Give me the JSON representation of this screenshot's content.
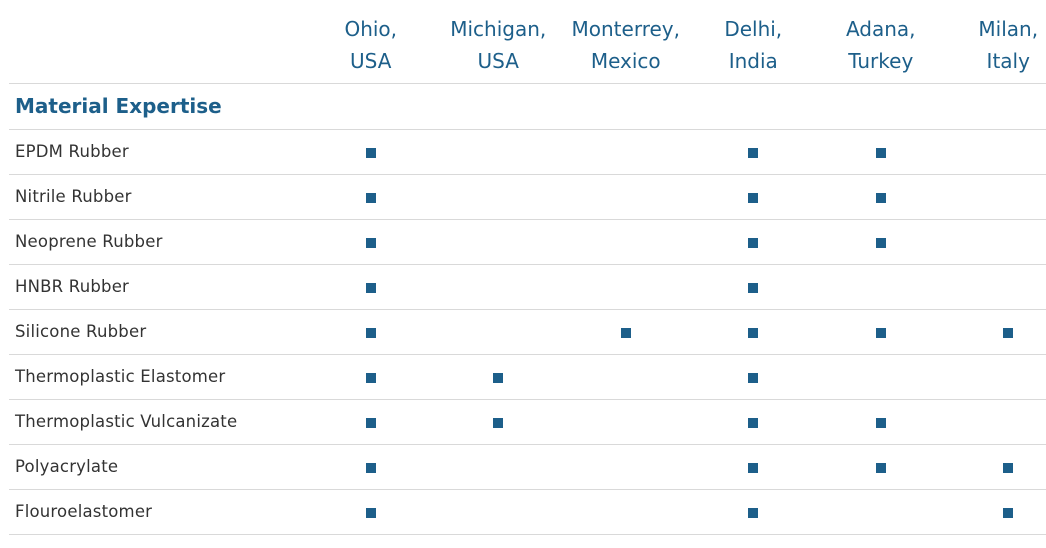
{
  "table": {
    "locations": [
      {
        "line1": "Ohio,",
        "line2": "USA"
      },
      {
        "line1": "Michigan,",
        "line2": "USA"
      },
      {
        "line1": "Monterrey,",
        "line2": "Mexico"
      },
      {
        "line1": "Delhi,",
        "line2": "India"
      },
      {
        "line1": "Adana,",
        "line2": "Turkey"
      },
      {
        "line1": "Milan,",
        "line2": "Italy"
      }
    ],
    "section_title": "Material Expertise",
    "rows": [
      {
        "name": "EPDM Rubber",
        "marks": [
          true,
          false,
          false,
          true,
          true,
          false
        ]
      },
      {
        "name": "Nitrile Rubber",
        "marks": [
          true,
          false,
          false,
          true,
          true,
          false
        ]
      },
      {
        "name": "Neoprene Rubber",
        "marks": [
          true,
          false,
          false,
          true,
          true,
          false
        ]
      },
      {
        "name": "HNBR Rubber",
        "marks": [
          true,
          false,
          false,
          true,
          false,
          false
        ]
      },
      {
        "name": "Silicone Rubber",
        "marks": [
          true,
          false,
          true,
          true,
          true,
          true
        ]
      },
      {
        "name": "Thermoplastic Elastomer",
        "marks": [
          true,
          true,
          false,
          true,
          false,
          false
        ]
      },
      {
        "name": "Thermoplastic Vulcanizate",
        "marks": [
          true,
          true,
          false,
          true,
          true,
          false
        ]
      },
      {
        "name": "Polyacrylate",
        "marks": [
          true,
          false,
          false,
          true,
          true,
          true
        ]
      },
      {
        "name": "Flouroelastomer",
        "marks": [
          true,
          false,
          false,
          true,
          false,
          true
        ]
      }
    ]
  },
  "colors": {
    "accent": "#1d5f8a",
    "text": "#333333",
    "rule": "#d9d9d9"
  },
  "icons": {
    "mark": "filled-square-icon"
  }
}
